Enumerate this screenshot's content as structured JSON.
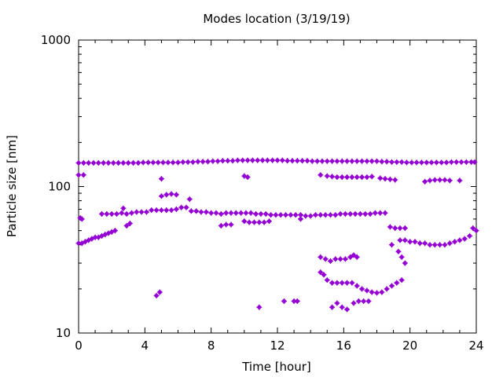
{
  "chart_data": {
    "type": "scatter",
    "title": "Modes location (3/19/19)",
    "xlabel": "Time [hour]",
    "ylabel": "Particle size [nm]",
    "xlim": [
      0,
      24
    ],
    "ylim": [
      10,
      1000
    ],
    "yscale": "log",
    "x_ticks": [
      0,
      4,
      8,
      12,
      16,
      20,
      24
    ],
    "x_tick_labels": [
      "0",
      "4",
      "8",
      "12",
      "16",
      "20",
      "24"
    ],
    "y_ticks": [
      10,
      100,
      1000
    ],
    "y_tick_labels": [
      "10",
      "100",
      "1000"
    ],
    "marker_color": "#9400D3",
    "grid": false,
    "series": [
      {
        "points": [
          [
            0.0,
            145
          ],
          [
            0.3,
            145
          ],
          [
            0.6,
            145
          ],
          [
            0.9,
            145
          ],
          [
            1.2,
            145
          ],
          [
            1.5,
            145
          ],
          [
            1.8,
            145
          ],
          [
            2.1,
            145
          ],
          [
            2.4,
            145
          ],
          [
            2.7,
            145
          ],
          [
            3.0,
            145
          ],
          [
            3.3,
            145
          ],
          [
            3.6,
            145
          ],
          [
            3.9,
            146
          ],
          [
            4.2,
            146
          ],
          [
            4.5,
            146
          ],
          [
            4.8,
            146
          ],
          [
            5.1,
            146
          ],
          [
            5.4,
            146
          ],
          [
            5.7,
            146
          ],
          [
            6.0,
            146
          ],
          [
            6.3,
            147
          ],
          [
            6.6,
            147
          ],
          [
            6.9,
            147
          ],
          [
            7.2,
            148
          ],
          [
            7.5,
            148
          ],
          [
            7.8,
            148
          ],
          [
            8.1,
            149
          ],
          [
            8.4,
            149
          ],
          [
            8.7,
            150
          ],
          [
            9.0,
            150
          ],
          [
            9.3,
            150
          ],
          [
            9.6,
            151
          ],
          [
            9.9,
            151
          ],
          [
            10.2,
            151
          ],
          [
            10.5,
            151
          ],
          [
            10.8,
            151
          ],
          [
            11.1,
            151
          ],
          [
            11.4,
            151
          ],
          [
            11.7,
            151
          ],
          [
            12.0,
            151
          ],
          [
            12.3,
            151
          ],
          [
            12.6,
            150
          ],
          [
            12.9,
            150
          ],
          [
            13.2,
            150
          ],
          [
            13.5,
            150
          ],
          [
            13.8,
            150
          ],
          [
            14.1,
            149
          ],
          [
            14.4,
            149
          ],
          [
            14.7,
            149
          ],
          [
            15.0,
            149
          ],
          [
            15.3,
            149
          ],
          [
            15.6,
            149
          ],
          [
            15.9,
            149
          ],
          [
            16.2,
            149
          ],
          [
            16.5,
            149
          ],
          [
            16.8,
            149
          ],
          [
            17.1,
            149
          ],
          [
            17.4,
            149
          ],
          [
            17.7,
            149
          ],
          [
            18.0,
            149
          ],
          [
            18.3,
            148
          ],
          [
            18.6,
            148
          ],
          [
            18.9,
            147
          ],
          [
            19.2,
            147
          ],
          [
            19.5,
            147
          ],
          [
            19.8,
            146
          ],
          [
            20.1,
            146
          ],
          [
            20.4,
            146
          ],
          [
            20.7,
            146
          ],
          [
            21.0,
            146
          ],
          [
            21.3,
            146
          ],
          [
            21.6,
            146
          ],
          [
            21.9,
            146
          ],
          [
            22.2,
            146
          ],
          [
            22.5,
            147
          ],
          [
            22.8,
            147
          ],
          [
            23.1,
            147
          ],
          [
            23.4,
            147
          ],
          [
            23.7,
            147
          ],
          [
            23.9,
            147
          ],
          [
            0.0,
            120
          ],
          [
            0.3,
            120
          ],
          [
            0.0,
            41
          ],
          [
            0.2,
            41
          ],
          [
            0.4,
            42
          ],
          [
            0.6,
            43
          ],
          [
            0.8,
            44
          ],
          [
            1.0,
            45
          ],
          [
            1.2,
            45
          ],
          [
            1.4,
            46
          ],
          [
            1.6,
            47
          ],
          [
            1.8,
            48
          ],
          [
            2.0,
            49
          ],
          [
            2.2,
            50
          ],
          [
            0.1,
            61
          ],
          [
            0.2,
            60
          ],
          [
            1.4,
            65
          ],
          [
            1.7,
            65
          ],
          [
            2.0,
            65
          ],
          [
            2.3,
            65
          ],
          [
            2.6,
            66
          ],
          [
            2.9,
            65
          ],
          [
            3.2,
            66
          ],
          [
            3.5,
            67
          ],
          [
            3.8,
            67
          ],
          [
            4.1,
            67
          ],
          [
            4.4,
            69
          ],
          [
            4.7,
            69
          ],
          [
            5.0,
            69
          ],
          [
            5.3,
            69
          ],
          [
            5.6,
            69
          ],
          [
            5.9,
            70
          ],
          [
            6.2,
            72
          ],
          [
            6.5,
            72
          ],
          [
            6.8,
            68
          ],
          [
            7.1,
            68
          ],
          [
            7.4,
            67
          ],
          [
            7.7,
            67
          ],
          [
            8.0,
            66
          ],
          [
            8.3,
            66
          ],
          [
            8.6,
            65
          ],
          [
            8.9,
            66
          ],
          [
            9.2,
            66
          ],
          [
            9.5,
            66
          ],
          [
            9.8,
            66
          ],
          [
            10.1,
            66
          ],
          [
            10.4,
            66
          ],
          [
            10.7,
            65
          ],
          [
            11.0,
            65
          ],
          [
            11.3,
            65
          ],
          [
            11.6,
            64
          ],
          [
            11.9,
            64
          ],
          [
            12.2,
            64
          ],
          [
            12.5,
            64
          ],
          [
            12.8,
            64
          ],
          [
            13.1,
            64
          ],
          [
            13.4,
            64
          ],
          [
            13.7,
            63
          ],
          [
            14.0,
            63
          ],
          [
            14.3,
            64
          ],
          [
            14.6,
            64
          ],
          [
            14.9,
            64
          ],
          [
            15.2,
            64
          ],
          [
            15.5,
            64
          ],
          [
            15.8,
            65
          ],
          [
            16.1,
            65
          ],
          [
            16.4,
            65
          ],
          [
            16.7,
            65
          ],
          [
            17.0,
            65
          ],
          [
            17.3,
            65
          ],
          [
            17.6,
            65
          ],
          [
            17.9,
            66
          ],
          [
            18.2,
            66
          ],
          [
            18.5,
            66
          ],
          [
            2.7,
            71
          ],
          [
            6.7,
            82
          ],
          [
            5.0,
            113
          ],
          [
            2.9,
            54
          ],
          [
            3.1,
            56
          ],
          [
            5.0,
            86
          ],
          [
            5.3,
            88
          ],
          [
            5.6,
            89
          ],
          [
            5.9,
            88
          ],
          [
            8.6,
            54
          ],
          [
            8.9,
            55
          ],
          [
            9.2,
            55
          ],
          [
            10.0,
            58
          ],
          [
            10.3,
            57
          ],
          [
            10.6,
            57
          ],
          [
            10.9,
            57
          ],
          [
            11.2,
            57
          ],
          [
            11.5,
            58
          ],
          [
            13.4,
            60
          ],
          [
            10.0,
            118
          ],
          [
            10.2,
            116
          ],
          [
            4.7,
            18
          ],
          [
            4.9,
            19
          ],
          [
            10.9,
            15
          ],
          [
            12.4,
            16.5
          ],
          [
            13.0,
            16.5
          ],
          [
            13.2,
            16.5
          ],
          [
            14.6,
            120
          ],
          [
            15.0,
            118
          ],
          [
            15.3,
            117
          ],
          [
            15.6,
            116
          ],
          [
            15.9,
            116
          ],
          [
            16.2,
            116
          ],
          [
            16.5,
            116
          ],
          [
            16.8,
            116
          ],
          [
            17.1,
            116
          ],
          [
            17.4,
            116
          ],
          [
            17.7,
            117
          ],
          [
            18.2,
            114
          ],
          [
            18.5,
            113
          ],
          [
            18.8,
            112
          ],
          [
            19.1,
            111
          ],
          [
            20.9,
            108
          ],
          [
            21.2,
            110
          ],
          [
            21.5,
            111
          ],
          [
            21.8,
            111
          ],
          [
            22.1,
            111
          ],
          [
            22.4,
            110
          ],
          [
            23.0,
            110
          ],
          [
            14.6,
            33
          ],
          [
            14.9,
            32
          ],
          [
            15.2,
            31
          ],
          [
            15.5,
            32
          ],
          [
            15.8,
            32
          ],
          [
            16.1,
            32
          ],
          [
            16.4,
            33
          ],
          [
            16.6,
            34
          ],
          [
            16.8,
            33
          ],
          [
            14.6,
            26
          ],
          [
            14.8,
            25
          ],
          [
            15.0,
            23
          ],
          [
            15.3,
            22
          ],
          [
            15.6,
            22
          ],
          [
            15.9,
            22
          ],
          [
            16.2,
            22
          ],
          [
            16.5,
            22
          ],
          [
            16.8,
            21
          ],
          [
            17.1,
            20
          ],
          [
            17.4,
            19.5
          ],
          [
            17.7,
            19
          ],
          [
            18.0,
            18.8
          ],
          [
            18.3,
            19
          ],
          [
            18.6,
            20
          ],
          [
            18.9,
            21
          ],
          [
            19.2,
            22
          ],
          [
            19.5,
            23
          ],
          [
            15.3,
            15
          ],
          [
            15.6,
            16
          ],
          [
            15.9,
            15
          ],
          [
            16.2,
            14.5
          ],
          [
            16.6,
            16
          ],
          [
            16.9,
            16.5
          ],
          [
            17.2,
            16.5
          ],
          [
            17.5,
            16.5
          ],
          [
            18.8,
            53
          ],
          [
            19.1,
            52
          ],
          [
            19.4,
            52
          ],
          [
            19.7,
            52
          ],
          [
            18.9,
            40
          ],
          [
            19.3,
            36
          ],
          [
            19.5,
            33
          ],
          [
            19.7,
            30
          ],
          [
            19.4,
            43
          ],
          [
            19.7,
            43
          ],
          [
            20.0,
            42
          ],
          [
            20.3,
            42
          ],
          [
            20.6,
            41
          ],
          [
            20.9,
            41
          ],
          [
            21.2,
            40
          ],
          [
            21.5,
            40
          ],
          [
            21.8,
            40
          ],
          [
            22.1,
            40
          ],
          [
            22.4,
            41
          ],
          [
            22.7,
            42
          ],
          [
            23.0,
            43
          ],
          [
            23.3,
            44
          ],
          [
            23.6,
            46
          ],
          [
            23.8,
            52
          ],
          [
            24.0,
            50
          ]
        ]
      }
    ]
  }
}
